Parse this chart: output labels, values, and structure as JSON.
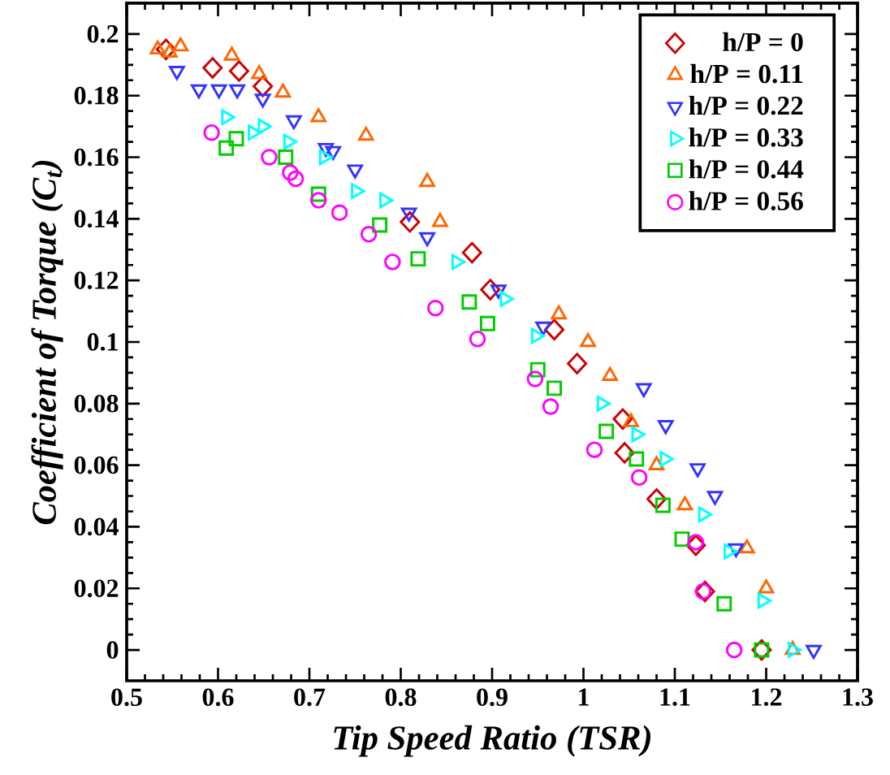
{
  "chart_data": {
    "type": "scatter",
    "xlabel": "Tip Speed Ratio (TSR)",
    "ylabel": "Coefficient of Torque (C$_{t}$)",
    "xlim": [
      0.5,
      1.3
    ],
    "ylim": [
      -0.01,
      0.21
    ],
    "xticks": [
      0.5,
      0.6,
      0.7,
      0.8,
      0.9,
      1,
      1.1,
      1.2,
      1.3
    ],
    "yticks": [
      0,
      0.02,
      0.04,
      0.06,
      0.08,
      0.1,
      0.12,
      0.14,
      0.16,
      0.18,
      0.2
    ],
    "legend": "top right",
    "grid": false,
    "series": [
      {
        "name": "h/P = 0",
        "color": "#cc0000",
        "marker": "diamond",
        "x": [
          0.543,
          0.594,
          0.623,
          0.649,
          0.81,
          0.878,
          0.898,
          0.968,
          0.993,
          1.043,
          1.045,
          1.08,
          1.123,
          1.133,
          1.195
        ],
        "values": [
          0.195,
          0.189,
          0.188,
          0.183,
          0.139,
          0.129,
          0.117,
          0.104,
          0.093,
          0.075,
          0.064,
          0.049,
          0.034,
          0.019,
          0
        ]
      },
      {
        "name": "h/P = 0.11",
        "color": "#ff6600",
        "marker": "triangle",
        "x": [
          0.534,
          0.547,
          0.559,
          0.615,
          0.645,
          0.671,
          0.71,
          0.762,
          0.829,
          0.843,
          0.973,
          1.005,
          1.029,
          1.052,
          1.08,
          1.111,
          1.179,
          1.2,
          1.229
        ],
        "values": [
          0.195,
          0.194,
          0.196,
          0.193,
          0.187,
          0.181,
          0.173,
          0.167,
          0.152,
          0.139,
          0.109,
          0.1,
          0.089,
          0.074,
          0.06,
          0.047,
          0.033,
          0.02,
          0
        ]
      },
      {
        "name": "h/P = 0.22",
        "color": "#3333ff",
        "marker": "triangle-down",
        "x": [
          0.555,
          0.579,
          0.601,
          0.621,
          0.649,
          0.683,
          0.718,
          0.726,
          0.75,
          0.809,
          0.829,
          0.907,
          0.956,
          1.066,
          1.09,
          1.125,
          1.144,
          1.167,
          1.252
        ],
        "values": [
          0.188,
          0.182,
          0.182,
          0.182,
          0.179,
          0.172,
          0.163,
          0.162,
          0.156,
          0.142,
          0.134,
          0.117,
          0.105,
          0.085,
          0.073,
          0.059,
          0.05,
          0.033,
          0
        ]
      },
      {
        "name": "h/P = 0.33",
        "color": "#00ffff",
        "marker": "triangle-right",
        "x": [
          0.609,
          0.638,
          0.649,
          0.677,
          0.716,
          0.751,
          0.782,
          0.861,
          0.914,
          0.948,
          1.02,
          1.058,
          1.089,
          1.131,
          1.159,
          1.196,
          1.229
        ],
        "values": [
          0.173,
          0.168,
          0.17,
          0.165,
          0.16,
          0.149,
          0.146,
          0.126,
          0.114,
          0.102,
          0.08,
          0.07,
          0.062,
          0.044,
          0.032,
          0.016,
          0
        ]
      },
      {
        "name": "h/P = 0.44",
        "color": "#00cc00",
        "marker": "square",
        "x": [
          0.609,
          0.62,
          0.674,
          0.71,
          0.777,
          0.819,
          0.875,
          0.895,
          0.95,
          0.968,
          1.025,
          1.058,
          1.087,
          1.108,
          1.154,
          1.195
        ],
        "values": [
          0.163,
          0.166,
          0.16,
          0.148,
          0.138,
          0.127,
          0.113,
          0.106,
          0.091,
          0.085,
          0.071,
          0.062,
          0.047,
          0.036,
          0.015,
          0
        ]
      },
      {
        "name": "h/P = 0.56",
        "color": "#ff00ff",
        "marker": "circle",
        "x": [
          0.593,
          0.656,
          0.679,
          0.685,
          0.71,
          0.733,
          0.765,
          0.791,
          0.838,
          0.884,
          0.947,
          0.964,
          1.012,
          1.061,
          1.123,
          1.131,
          1.165
        ],
        "values": [
          0.168,
          0.16,
          0.155,
          0.153,
          0.146,
          0.142,
          0.135,
          0.126,
          0.111,
          0.101,
          0.088,
          0.079,
          0.065,
          0.056,
          0.035,
          0.019,
          0
        ]
      }
    ]
  }
}
